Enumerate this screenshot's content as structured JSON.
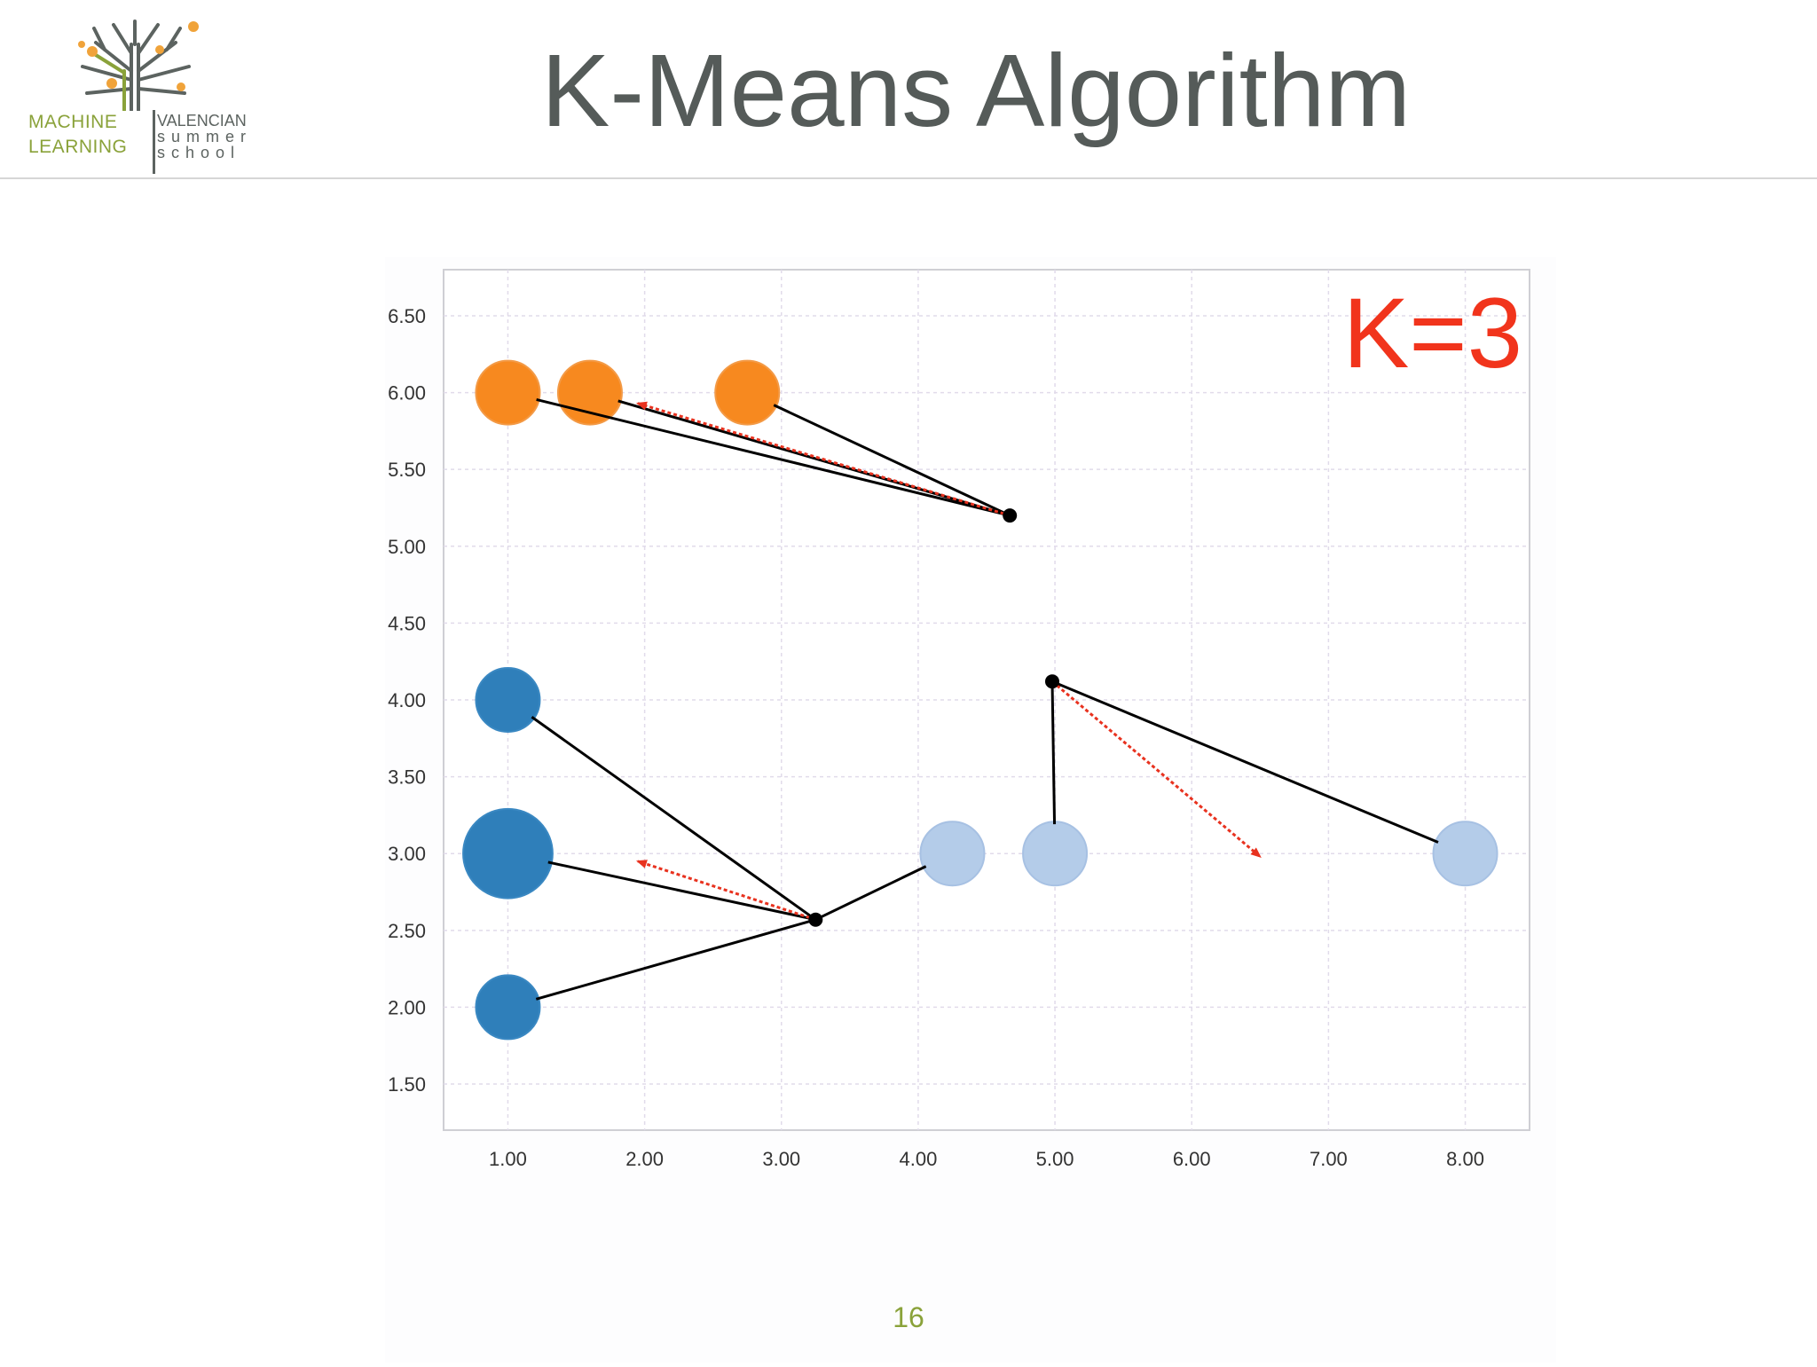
{
  "header": {
    "title": "K-Means Algorithm",
    "logo": {
      "left_text": [
        "MACHINE",
        "LEARNING"
      ],
      "right_text": [
        "VALENCIAN",
        "summer",
        "school"
      ]
    }
  },
  "page_number": "16",
  "colors": {
    "cluster_orange": "#f7891f",
    "cluster_dark_blue": "#2f7fba",
    "cluster_light_blue": "#b4cce9",
    "centroid": "#000000",
    "arrow": "#e8321f",
    "k_label": "#f1341c",
    "tree_green": "#8aa23a",
    "tree_orange": "#f0a33a",
    "title_gray": "#555b59"
  },
  "chart_data": {
    "type": "scatter",
    "annotation": "K=3",
    "xlim": [
      0.53,
      8.47
    ],
    "ylim": [
      1.2,
      6.8
    ],
    "x_ticks": [
      "1.00",
      "2.00",
      "3.00",
      "4.00",
      "5.00",
      "6.00",
      "7.00",
      "8.00"
    ],
    "y_ticks": [
      "1.50",
      "2.00",
      "2.50",
      "3.00",
      "3.50",
      "4.00",
      "4.50",
      "5.00",
      "5.50",
      "6.00",
      "6.50"
    ],
    "grid": true,
    "points": [
      {
        "x": 1.0,
        "y": 6.0,
        "cluster": "orange",
        "size": 1
      },
      {
        "x": 1.6,
        "y": 6.0,
        "cluster": "orange",
        "size": 1
      },
      {
        "x": 2.75,
        "y": 6.0,
        "cluster": "orange",
        "size": 1
      },
      {
        "x": 1.0,
        "y": 4.0,
        "cluster": "dark_blue",
        "size": 1
      },
      {
        "x": 1.0,
        "y": 3.0,
        "cluster": "dark_blue",
        "size": 1.4
      },
      {
        "x": 1.0,
        "y": 2.0,
        "cluster": "dark_blue",
        "size": 1
      },
      {
        "x": 4.25,
        "y": 3.0,
        "cluster": "light_blue",
        "size": 1
      },
      {
        "x": 5.0,
        "y": 3.0,
        "cluster": "light_blue",
        "size": 1
      },
      {
        "x": 8.0,
        "y": 3.0,
        "cluster": "light_blue",
        "size": 1
      }
    ],
    "centroids": [
      {
        "x": 4.67,
        "y": 5.2,
        "cluster": "orange"
      },
      {
        "x": 3.25,
        "y": 2.57,
        "cluster": "dark_blue"
      },
      {
        "x": 4.98,
        "y": 4.12,
        "cluster": "light_blue"
      }
    ],
    "connections": [
      {
        "centroid": 0,
        "point": 0
      },
      {
        "centroid": 0,
        "point": 1
      },
      {
        "centroid": 0,
        "point": 2
      },
      {
        "centroid": 1,
        "point": 3
      },
      {
        "centroid": 1,
        "point": 4
      },
      {
        "centroid": 1,
        "point": 5
      },
      {
        "centroid": 1,
        "point": 6
      },
      {
        "centroid": 2,
        "point": 7
      },
      {
        "centroid": 2,
        "point": 8
      }
    ],
    "moves": [
      {
        "from": [
          4.67,
          5.2
        ],
        "to": [
          1.95,
          5.93
        ]
      },
      {
        "from": [
          3.25,
          2.57
        ],
        "to": [
          1.95,
          2.95
        ]
      },
      {
        "from": [
          4.98,
          4.12
        ],
        "to": [
          6.5,
          2.98
        ]
      }
    ]
  }
}
